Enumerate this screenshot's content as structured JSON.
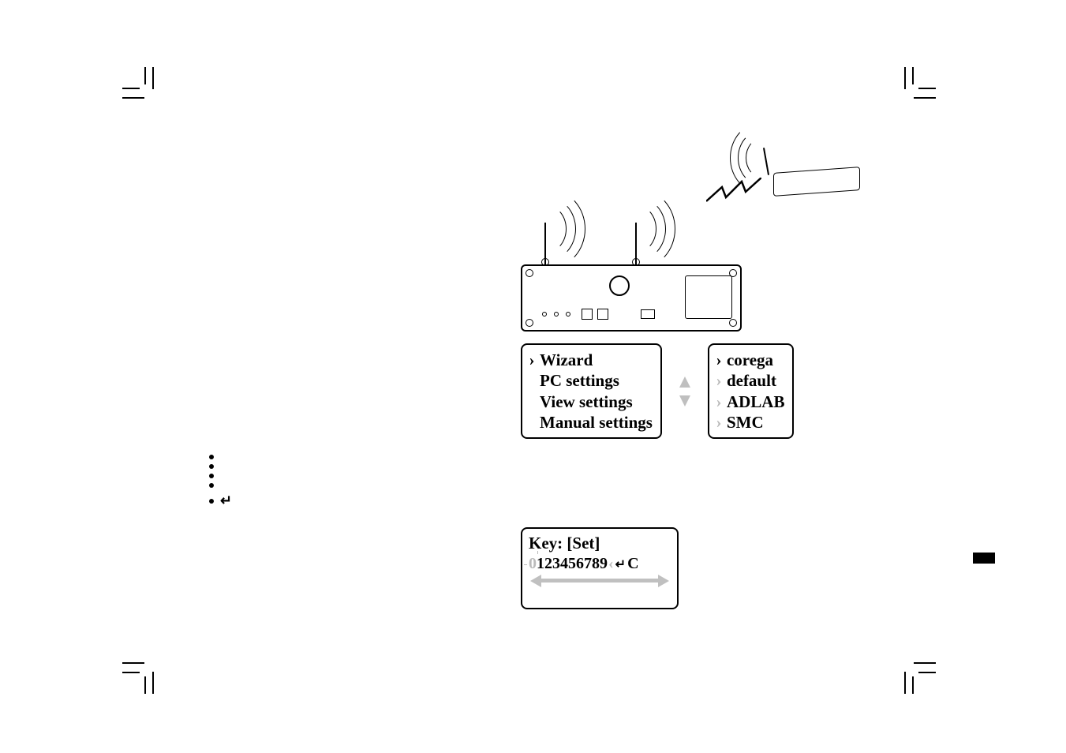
{
  "menu1": {
    "items": [
      {
        "label": "Wizard",
        "selected": true
      },
      {
        "label": "PC settings",
        "selected": false
      },
      {
        "label": "View settings",
        "selected": false
      },
      {
        "label": "Manual settings",
        "selected": false
      }
    ]
  },
  "menu2": {
    "items": [
      {
        "label": "corega",
        "marker_bold": true
      },
      {
        "label": "default",
        "marker_bold": false
      },
      {
        "label": "ADLAB",
        "marker_bold": false
      },
      {
        "label": "SMC",
        "marker_bold": false
      }
    ]
  },
  "keybox": {
    "title": "Key: [Set]",
    "flash_char": "0",
    "digits": "123456789",
    "backspace_glyph": "↵",
    "trailing_char": "C"
  },
  "bullets_count": 5,
  "bullet_return_glyph": "↵",
  "colors": {
    "text": "#000000",
    "border": "#000000",
    "faded": "#bbbbbb",
    "arrow_gray": "#c0c0c0",
    "background": "#ffffff"
  }
}
